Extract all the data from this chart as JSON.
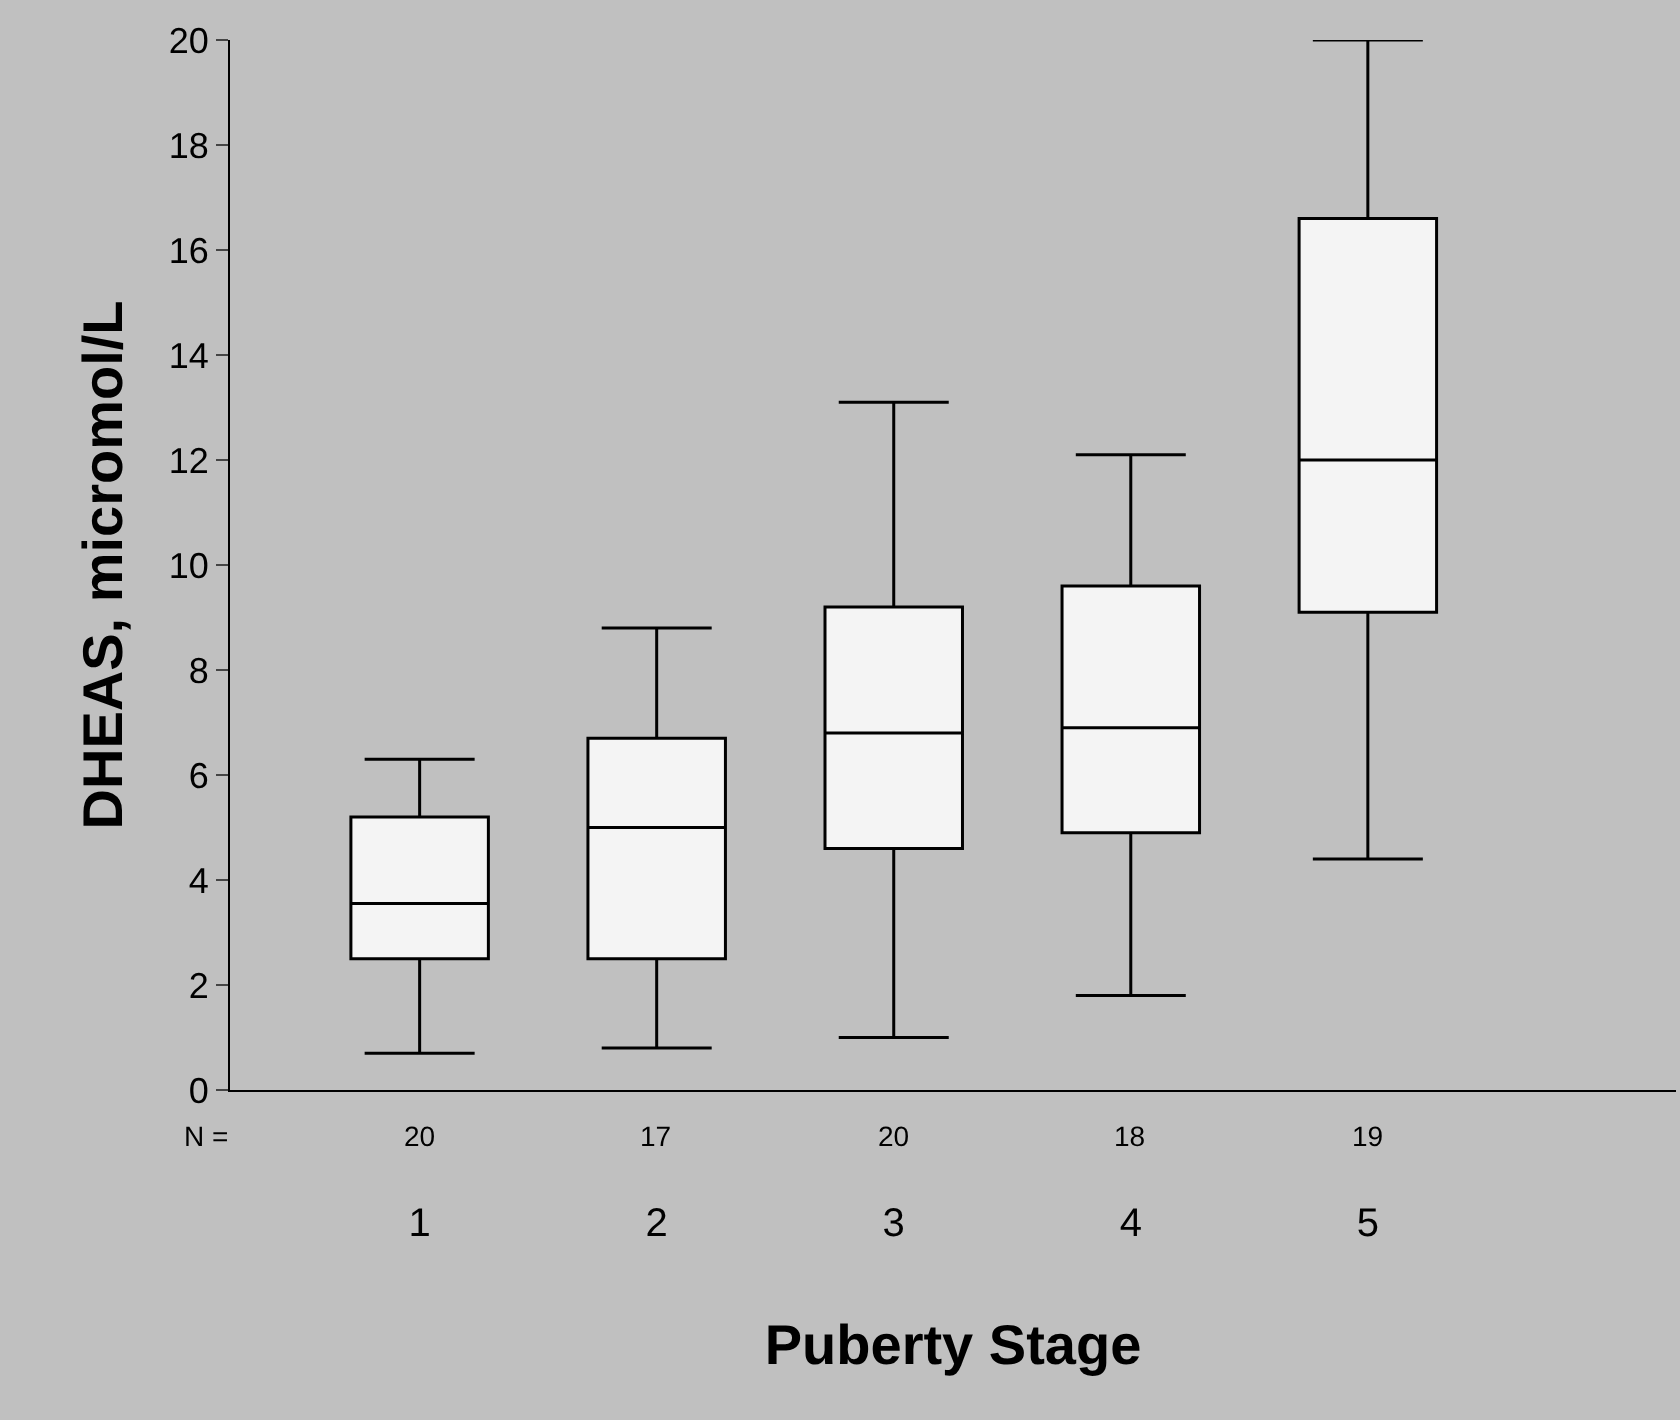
{
  "chart_data": {
    "type": "box",
    "xlabel": "Puberty Stage",
    "ylabel": "DHEAS, micromol/L",
    "categories": [
      "1",
      "2",
      "3",
      "4",
      "5"
    ],
    "boxes": [
      {
        "low": 0.7,
        "q1": 2.5,
        "median": 3.55,
        "q3": 5.2,
        "high": 6.3
      },
      {
        "low": 0.8,
        "q1": 2.5,
        "median": 5.0,
        "q3": 6.7,
        "high": 8.8
      },
      {
        "low": 1.0,
        "q1": 4.6,
        "median": 6.8,
        "q3": 9.2,
        "high": 13.1
      },
      {
        "low": 1.8,
        "q1": 4.9,
        "median": 6.9,
        "q3": 9.6,
        "high": 12.1
      },
      {
        "low": 4.4,
        "q1": 9.1,
        "median": 12.0,
        "q3": 16.6,
        "high": 20.0
      }
    ],
    "color": "#000000",
    "ylim": [
      0,
      20
    ],
    "yticks": [
      0,
      2,
      4,
      6,
      8,
      10,
      12,
      14,
      16,
      18,
      20
    ],
    "annotations": [
      "N =",
      "20",
      "17",
      "20",
      "18",
      "19"
    ]
  }
}
